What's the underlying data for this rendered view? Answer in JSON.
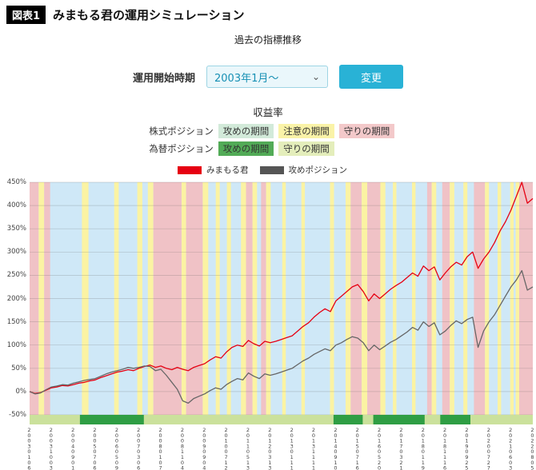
{
  "header": {
    "badge": "図表1",
    "title": "みまもる君の運用シミュレーション"
  },
  "subtitle": "過去の指標推移",
  "controls": {
    "label": "運用開始時期",
    "select_value": "2003年1月〜",
    "button": "変更"
  },
  "legend": {
    "title": "収益率",
    "rows": [
      {
        "label": "株式ポジション",
        "chips": [
          {
            "text": "攻めの期間",
            "color": "#d2ead9"
          },
          {
            "text": "注意の期間",
            "color": "#faf3a8"
          },
          {
            "text": "守りの期間",
            "color": "#f3c9ca"
          }
        ]
      },
      {
        "label": "為替ポジション",
        "chips": [
          {
            "text": "攻めの期間",
            "color": "#52ab57"
          },
          {
            "text": "守りの期間",
            "color": "#e4eebb"
          }
        ]
      }
    ]
  },
  "series_legend": [
    {
      "label": "みまもる君",
      "color": "#e60012"
    },
    {
      "label": "攻めポジション",
      "color": "#555555"
    }
  ],
  "chart_data": {
    "type": "line",
    "title": "過去の指標推移",
    "y_min": -50,
    "y_max": 450,
    "y_ticks": [
      "450%",
      "400%",
      "350%",
      "300%",
      "250%",
      "200%",
      "150%",
      "100%",
      "50%",
      "0%",
      "-50%"
    ],
    "x_tick_labels": [
      "20030106",
      "20031003",
      "20040901",
      "20050706",
      "20060509",
      "20070306",
      "20080107",
      "20081104",
      "20090904",
      "20100712",
      "20110513",
      "20120313",
      "20130111",
      "20131111",
      "20140910",
      "20150716",
      "20160520",
      "20170321",
      "20180119",
      "20181116",
      "20190925",
      "20200727",
      "20210603",
      "20220805"
    ],
    "band_colors": {
      "attack": "#cfe8f7",
      "caution": "#fbf3a3",
      "defense": "#f0c2c6"
    },
    "bands": [
      {
        "s": 0.0,
        "e": 0.018,
        "t": "defense"
      },
      {
        "s": 0.018,
        "e": 0.029,
        "t": "caution"
      },
      {
        "s": 0.029,
        "e": 0.041,
        "t": "defense"
      },
      {
        "s": 0.104,
        "e": 0.117,
        "t": "caution"
      },
      {
        "s": 0.168,
        "e": 0.177,
        "t": "caution"
      },
      {
        "s": 0.214,
        "e": 0.224,
        "t": "caution"
      },
      {
        "s": 0.235,
        "e": 0.246,
        "t": "caution"
      },
      {
        "s": 0.246,
        "e": 0.302,
        "t": "defense"
      },
      {
        "s": 0.302,
        "e": 0.311,
        "t": "caution"
      },
      {
        "s": 0.311,
        "e": 0.344,
        "t": "defense"
      },
      {
        "s": 0.344,
        "e": 0.355,
        "t": "caution"
      },
      {
        "s": 0.37,
        "e": 0.378,
        "t": "caution"
      },
      {
        "s": 0.392,
        "e": 0.4,
        "t": "caution"
      },
      {
        "s": 0.42,
        "e": 0.43,
        "t": "caution"
      },
      {
        "s": 0.43,
        "e": 0.443,
        "t": "defense"
      },
      {
        "s": 0.443,
        "e": 0.452,
        "t": "caution"
      },
      {
        "s": 0.46,
        "e": 0.47,
        "t": "defense"
      },
      {
        "s": 0.47,
        "e": 0.479,
        "t": "caution"
      },
      {
        "s": 0.502,
        "e": 0.509,
        "t": "caution"
      },
      {
        "s": 0.54,
        "e": 0.547,
        "t": "caution"
      },
      {
        "s": 0.597,
        "e": 0.605,
        "t": "caution"
      },
      {
        "s": 0.628,
        "e": 0.638,
        "t": "caution"
      },
      {
        "s": 0.638,
        "e": 0.66,
        "t": "defense"
      },
      {
        "s": 0.66,
        "e": 0.671,
        "t": "caution"
      },
      {
        "s": 0.671,
        "e": 0.697,
        "t": "defense"
      },
      {
        "s": 0.697,
        "e": 0.707,
        "t": "caution"
      },
      {
        "s": 0.722,
        "e": 0.729,
        "t": "caution"
      },
      {
        "s": 0.76,
        "e": 0.767,
        "t": "caution"
      },
      {
        "s": 0.79,
        "e": 0.799,
        "t": "defense"
      },
      {
        "s": 0.799,
        "e": 0.808,
        "t": "caution"
      },
      {
        "s": 0.82,
        "e": 0.835,
        "t": "defense"
      },
      {
        "s": 0.835,
        "e": 0.844,
        "t": "caution"
      },
      {
        "s": 0.862,
        "e": 0.87,
        "t": "caution"
      },
      {
        "s": 0.883,
        "e": 0.905,
        "t": "defense"
      },
      {
        "s": 0.905,
        "e": 0.913,
        "t": "caution"
      },
      {
        "s": 0.93,
        "e": 0.937,
        "t": "caution"
      },
      {
        "s": 0.955,
        "e": 0.962,
        "t": "caution"
      },
      {
        "s": 0.966,
        "e": 0.973,
        "t": "caution"
      },
      {
        "s": 0.973,
        "e": 1.0,
        "t": "defense"
      }
    ],
    "fx_strip": {
      "light": "#cbe19c",
      "dark": "#2f9e44",
      "dark_segments": [
        [
          0.1,
          0.227
        ],
        [
          0.604,
          0.662
        ],
        [
          0.683,
          0.785
        ],
        [
          0.816,
          0.876
        ]
      ]
    },
    "series": [
      {
        "name": "みまもる君",
        "color": "#e60012",
        "values": [
          0,
          -4,
          -2,
          3,
          8,
          10,
          13,
          12,
          15,
          18,
          20,
          23,
          25,
          30,
          34,
          38,
          42,
          44,
          47,
          45,
          50,
          54,
          57,
          52,
          55,
          50,
          47,
          52,
          48,
          45,
          52,
          56,
          60,
          68,
          75,
          72,
          85,
          95,
          100,
          97,
          110,
          103,
          98,
          108,
          105,
          108,
          112,
          116,
          120,
          130,
          140,
          148,
          160,
          170,
          178,
          172,
          195,
          205,
          215,
          225,
          230,
          215,
          195,
          210,
          200,
          210,
          220,
          228,
          235,
          245,
          255,
          248,
          270,
          260,
          268,
          240,
          255,
          268,
          278,
          272,
          290,
          300,
          265,
          285,
          300,
          320,
          345,
          365,
          390,
          420,
          450,
          405,
          415
        ]
      },
      {
        "name": "攻めポジション",
        "color": "#666666",
        "values": [
          0,
          -5,
          -3,
          4,
          10,
          12,
          15,
          14,
          18,
          21,
          24,
          26,
          28,
          33,
          38,
          42,
          45,
          48,
          52,
          50,
          52,
          55,
          54,
          45,
          48,
          35,
          20,
          5,
          -20,
          -25,
          -15,
          -10,
          -5,
          2,
          8,
          5,
          15,
          22,
          28,
          25,
          40,
          33,
          28,
          38,
          35,
          38,
          42,
          46,
          50,
          58,
          66,
          72,
          80,
          86,
          92,
          88,
          100,
          105,
          112,
          118,
          115,
          105,
          88,
          100,
          90,
          98,
          106,
          112,
          120,
          128,
          138,
          132,
          150,
          140,
          148,
          122,
          130,
          142,
          152,
          146,
          155,
          160,
          95,
          130,
          150,
          165,
          185,
          205,
          225,
          240,
          260,
          218,
          225
        ]
      }
    ]
  }
}
